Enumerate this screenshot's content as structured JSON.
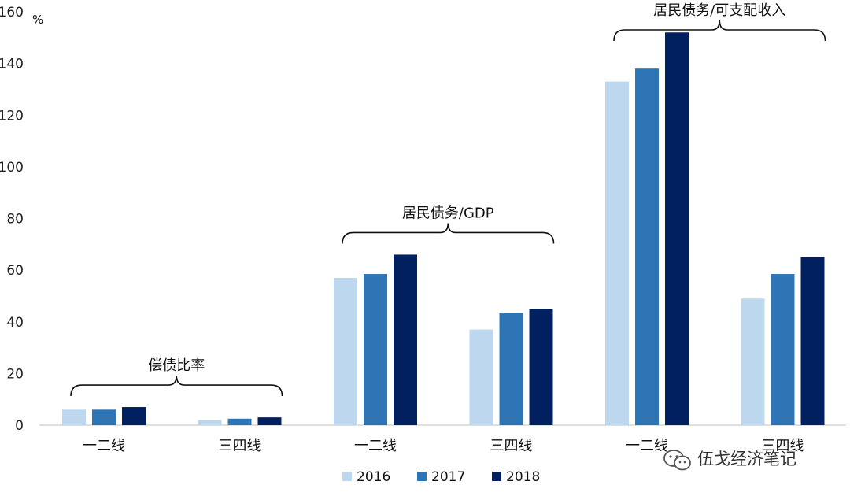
{
  "chart_data": {
    "type": "bar",
    "y_unit": "%",
    "ylim": [
      0,
      160
    ],
    "yticks": [
      0,
      20,
      40,
      60,
      80,
      100,
      120,
      140,
      160
    ],
    "grid": false,
    "legend_position": "bottom",
    "categories": [
      "一二线",
      "三四线",
      "一二线",
      "三四线",
      "一二线",
      "三四线"
    ],
    "groups": [
      {
        "label": "偿债比率",
        "categories": [
          0,
          1
        ]
      },
      {
        "label": "居民债务/GDP",
        "categories": [
          2,
          3
        ]
      },
      {
        "label": "居民债务/可支配收入",
        "categories": [
          4,
          5
        ]
      }
    ],
    "series": [
      {
        "name": "2016",
        "color": "#bdd7ee",
        "values": [
          6,
          2,
          57,
          37,
          133,
          49
        ]
      },
      {
        "name": "2017",
        "color": "#2e75b6",
        "values": [
          6,
          2.5,
          58.5,
          43.5,
          138,
          58.5
        ]
      },
      {
        "name": "2018",
        "color": "#002060",
        "values": [
          7,
          3,
          66,
          45,
          152,
          65
        ]
      }
    ]
  },
  "watermark": {
    "text": "伍戈经济笔记",
    "icon": "wechat-icon"
  }
}
